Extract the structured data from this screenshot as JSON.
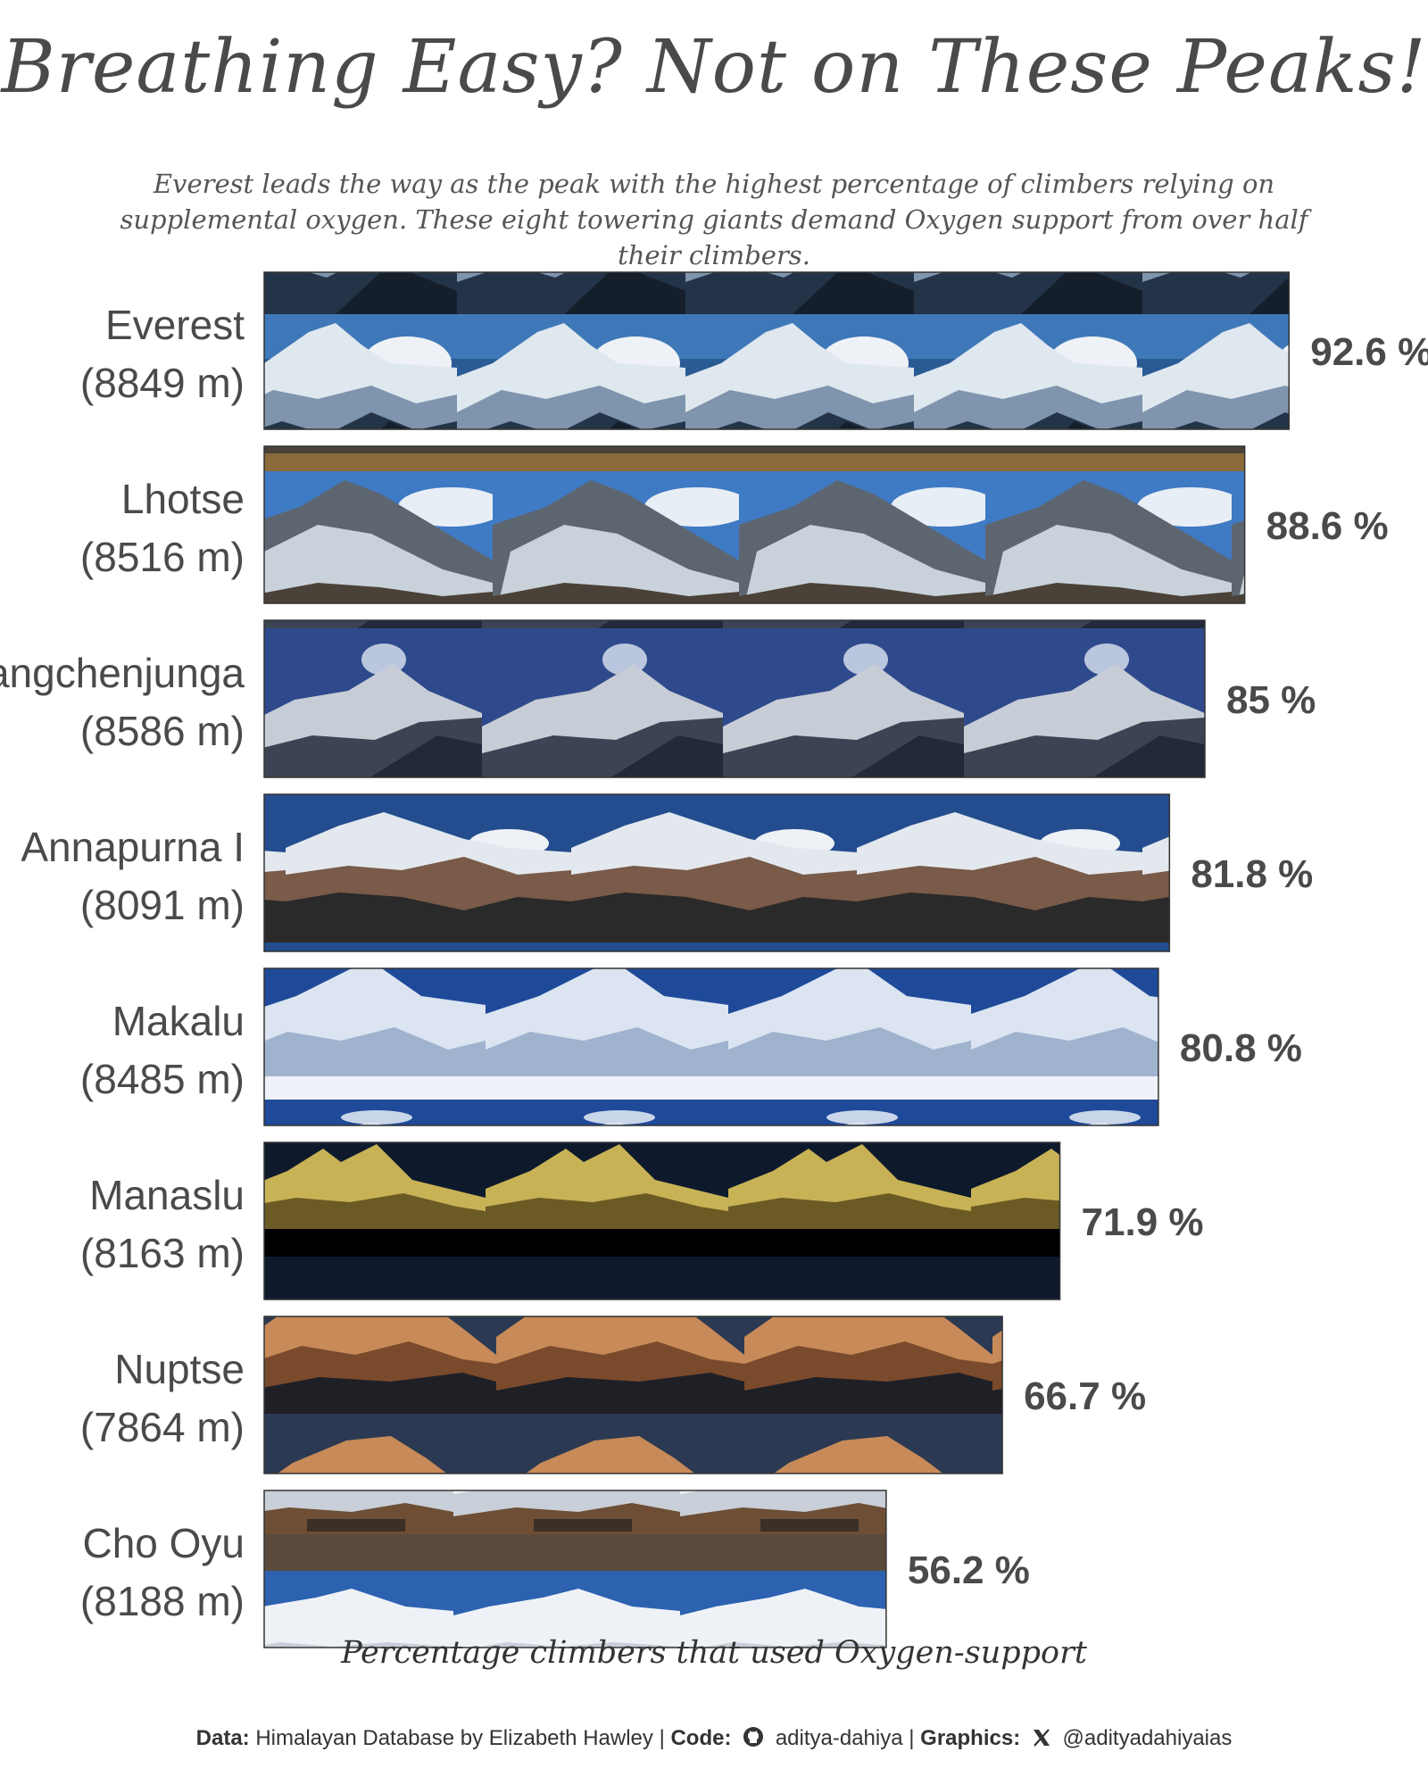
{
  "title": "Breathing Easy? Not on These Peaks!",
  "subtitle": "Everest leads the way as the peak with the highest percentage of climbers relying on supplemental oxygen. These eight towering giants demand Oxygen support from over half their climbers.",
  "chart_data": {
    "type": "bar",
    "orientation": "horizontal",
    "categories": [
      "Everest",
      "Lhotse",
      "Kangchenjunga",
      "Annapurna I",
      "Makalu",
      "Manaslu",
      "Nuptse",
      "Cho Oyu"
    ],
    "heights": [
      "(8849 m)",
      "(8516 m)",
      "(8586 m)",
      "(8091 m)",
      "(8485 m)",
      "(8163 m)",
      "(7864 m)",
      "(8188 m)"
    ],
    "values": [
      92.6,
      88.6,
      85,
      81.8,
      80.8,
      71.9,
      66.7,
      56.2
    ],
    "value_labels": [
      "92.6 %",
      "88.6 %",
      "85 %",
      "81.8 %",
      "80.8 %",
      "71.9 %",
      "66.7 %",
      "56.2 %"
    ],
    "xlim": [
      0,
      100
    ],
    "xlabel": "Percentage climbers that used Oxygen-support",
    "grid": false,
    "bar_fill": "repeated mountain photographs"
  },
  "caption": {
    "data_label": "Data:",
    "data_text": "Himalayan Database by Elizabeth Hawley",
    "code_label": "Code:",
    "github_icon": "github-icon",
    "code_handle": "aditya-dahiya",
    "graphics_label": "Graphics:",
    "x_icon": "x-twitter-icon",
    "graphics_handle": "@adityadahiyaias",
    "separator": "|"
  },
  "colors": {
    "text": "#4a4a4a",
    "everest_sky": "#2a5b94",
    "lhotse_sky": "#3f7ac4",
    "kangchenjunga_sky": "#2f4a8c",
    "annapurna_sky": "#234d8e",
    "makalu_sky": "#1f4a9a",
    "manaslu_sky": "#0e1a2c",
    "nuptse_sky": "#2b3a52",
    "cho_oyu_sky": "#2d62b0"
  }
}
